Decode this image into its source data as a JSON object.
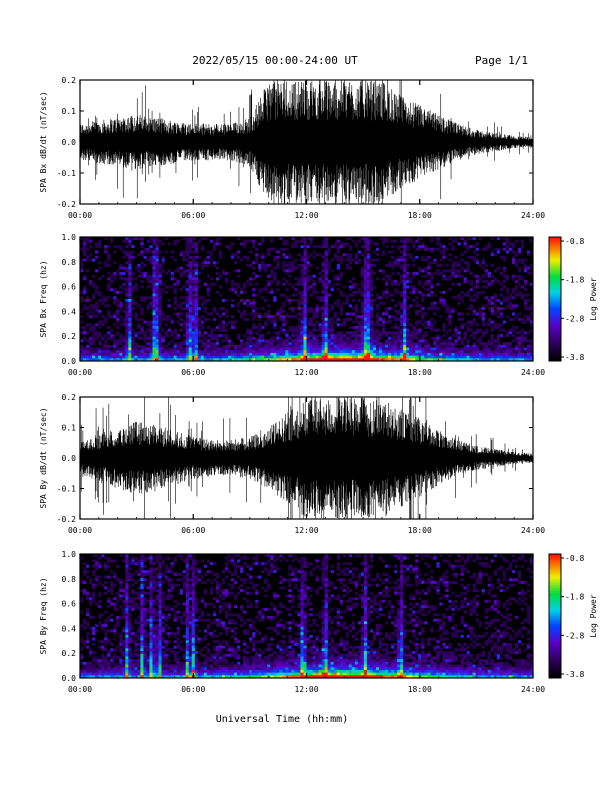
{
  "header": {
    "title": "2022/05/15  00:00-24:00 UT",
    "page": "Page 1/1"
  },
  "x_axis": {
    "label": "Universal Time (hh:mm)",
    "ticks": [
      "00:00",
      "06:00",
      "12:00",
      "18:00",
      "24:00"
    ]
  },
  "chart_data": [
    {
      "type": "line",
      "ylabel": "SPA Bx dB/dt (nT/sec)",
      "xlim": [
        0,
        24
      ],
      "ylim": [
        -0.2,
        0.2
      ],
      "yticks": [
        "0.2",
        "0.1",
        "0.0",
        "-0.1",
        "-0.2"
      ],
      "xticks": [
        "00:00",
        "06:00",
        "12:00",
        "18:00",
        "24:00"
      ],
      "series": [
        {
          "x": [
            0,
            1,
            2,
            3,
            4,
            5,
            6,
            7,
            8,
            9,
            10,
            11,
            12,
            13,
            14,
            15,
            16,
            17,
            18,
            19,
            20,
            21,
            22,
            23,
            24
          ],
          "amplitude": [
            0.06,
            0.07,
            0.08,
            0.09,
            0.08,
            0.07,
            0.06,
            0.06,
            0.06,
            0.08,
            0.2,
            0.2,
            0.2,
            0.2,
            0.2,
            0.2,
            0.2,
            0.15,
            0.12,
            0.09,
            0.06,
            0.04,
            0.03,
            0.02,
            0.015
          ],
          "color": "#000000"
        }
      ]
    },
    {
      "type": "heatmap",
      "ylabel": "SPA Bx Freq (hz)",
      "xlim": [
        0,
        24
      ],
      "ylim": [
        0,
        1.0
      ],
      "yticks": [
        "1.0",
        "0.8",
        "0.6",
        "0.4",
        "0.2",
        "0.0"
      ],
      "xticks": [
        "00:00",
        "06:00",
        "12:00",
        "18:00",
        "24:00"
      ],
      "colorbar": {
        "label": "Log Power",
        "ticks": [
          "-0.8",
          "-1.8",
          "-2.8",
          "-3.8"
        ]
      },
      "bright_times": [
        2.6,
        3.9,
        4.1,
        5.8,
        6.1,
        11.9,
        13.0,
        15.1,
        15.3,
        17.2
      ]
    },
    {
      "type": "line",
      "ylabel": "SPA By dB/dt (nT/sec)",
      "xlim": [
        0,
        24
      ],
      "ylim": [
        -0.2,
        0.2
      ],
      "yticks": [
        "0.2",
        "0.1",
        "0.0",
        "-0.1",
        "-0.2"
      ],
      "xticks": [
        "00:00",
        "06:00",
        "12:00",
        "18:00",
        "24:00"
      ],
      "series": [
        {
          "x": [
            0,
            1,
            2,
            3,
            4,
            5,
            6,
            7,
            8,
            9,
            10,
            11,
            12,
            13,
            14,
            15,
            16,
            17,
            18,
            19,
            20,
            21,
            22,
            23,
            24
          ],
          "amplitude": [
            0.05,
            0.08,
            0.1,
            0.12,
            0.11,
            0.09,
            0.07,
            0.06,
            0.06,
            0.07,
            0.1,
            0.15,
            0.2,
            0.2,
            0.2,
            0.2,
            0.2,
            0.16,
            0.13,
            0.09,
            0.06,
            0.04,
            0.03,
            0.02,
            0.015
          ],
          "color": "#000000"
        }
      ]
    },
    {
      "type": "heatmap",
      "ylabel": "SPA By Freq (hz)",
      "xlim": [
        0,
        24
      ],
      "ylim": [
        0,
        1.0
      ],
      "yticks": [
        "1.0",
        "0.8",
        "0.6",
        "0.4",
        "0.2",
        "0.0"
      ],
      "xticks": [
        "00:00",
        "06:00",
        "12:00",
        "18:00",
        "24:00"
      ],
      "colorbar": {
        "label": "Log Power",
        "ticks": [
          "-0.8",
          "-1.8",
          "-2.8",
          "-3.8"
        ]
      },
      "bright_times": [
        2.5,
        3.3,
        3.8,
        4.2,
        5.7,
        6.0,
        11.8,
        13.0,
        15.1,
        17.0
      ]
    }
  ]
}
